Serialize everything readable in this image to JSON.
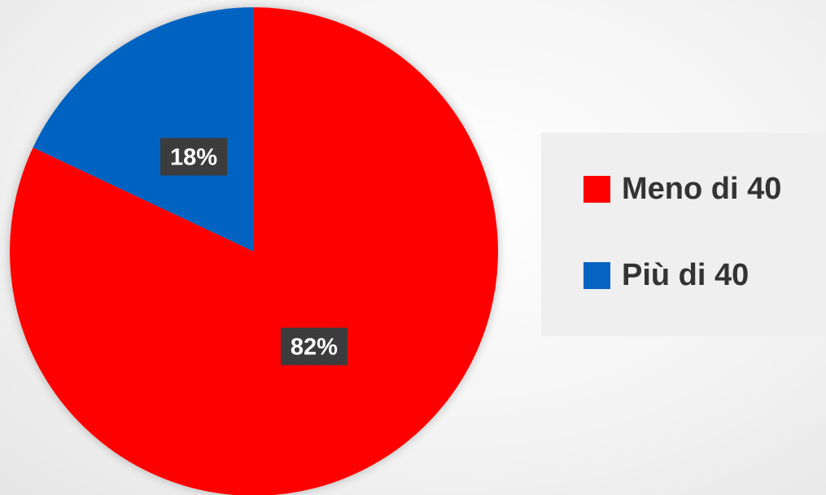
{
  "chart_data": {
    "type": "pie",
    "categories": [
      "Meno di 40",
      "Più di 40"
    ],
    "values": [
      82,
      18
    ],
    "data_labels": [
      "82%",
      "18%"
    ],
    "colors": [
      "#ff0000",
      "#0563c1"
    ],
    "start_angle_deg": 0,
    "direction": "clockwise",
    "legend": {
      "placement": "right",
      "entries": [
        "Meno di 40",
        "Più di 40"
      ]
    },
    "title": ""
  }
}
